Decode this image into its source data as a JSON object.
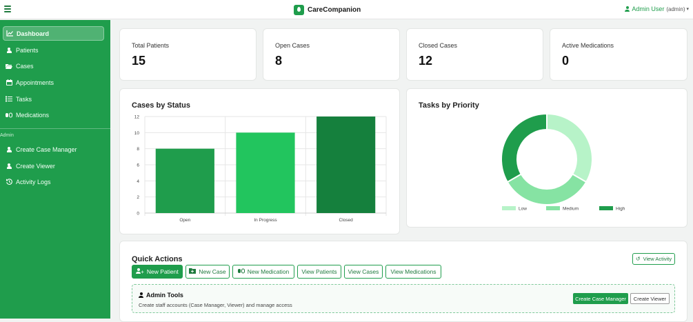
{
  "brand": {
    "name": "CareCompanion"
  },
  "user": {
    "name": "Admin User",
    "role": "(admin)"
  },
  "sidebar": {
    "items": [
      {
        "label": "Dashboard"
      },
      {
        "label": "Patients"
      },
      {
        "label": "Cases"
      },
      {
        "label": "Appointments"
      },
      {
        "label": "Tasks"
      },
      {
        "label": "Medications"
      }
    ],
    "admin_section": "Admin",
    "admin_items": [
      {
        "label": "Create Case Manager"
      },
      {
        "label": "Create Viewer"
      },
      {
        "label": "Activity Logs"
      }
    ]
  },
  "stats": [
    {
      "label": "Total Patients",
      "value": "15"
    },
    {
      "label": "Open Cases",
      "value": "8"
    },
    {
      "label": "Closed Cases",
      "value": "12"
    },
    {
      "label": "Active Medications",
      "value": "0"
    }
  ],
  "cases_chart": {
    "title": "Cases by Status"
  },
  "tasks_chart": {
    "title": "Tasks by Priority"
  },
  "chart_data": [
    {
      "type": "bar",
      "title": "Cases by Status",
      "categories": [
        "Open",
        "In Progress",
        "Closed"
      ],
      "values": [
        8,
        10,
        12
      ],
      "colors": [
        "#1f9d4c",
        "#22c55e",
        "#15803d"
      ],
      "ylim": [
        0,
        12
      ],
      "yticks": [
        0,
        2,
        4,
        6,
        8,
        10,
        12
      ],
      "grid": true
    },
    {
      "type": "pie",
      "subtype": "doughnut",
      "title": "Tasks by Priority",
      "labels": [
        "Low",
        "Medium",
        "High"
      ],
      "values": [
        1,
        1,
        1
      ],
      "colors": [
        "#b7f3c8",
        "#86e3a3",
        "#1f9d4c"
      ],
      "legend": "bottom"
    }
  ],
  "quick_actions": {
    "title": "Quick Actions",
    "view_activity": "View Activity",
    "buttons": [
      {
        "label": "New Patient"
      },
      {
        "label": "New Case"
      },
      {
        "label": "New Medication"
      },
      {
        "label": "View Patients"
      },
      {
        "label": "View Cases"
      },
      {
        "label": "View Medications"
      }
    ],
    "admin_tools": {
      "title": "Admin Tools",
      "description": "Create staff accounts (Case Manager, Viewer) and manage access",
      "create_case_manager": "Create Case Manager",
      "create_viewer": "Create Viewer"
    }
  },
  "colors": {
    "primary": "#1f9d4c",
    "sidebar": "#1f9d4c",
    "background": "#f1f3f2"
  }
}
